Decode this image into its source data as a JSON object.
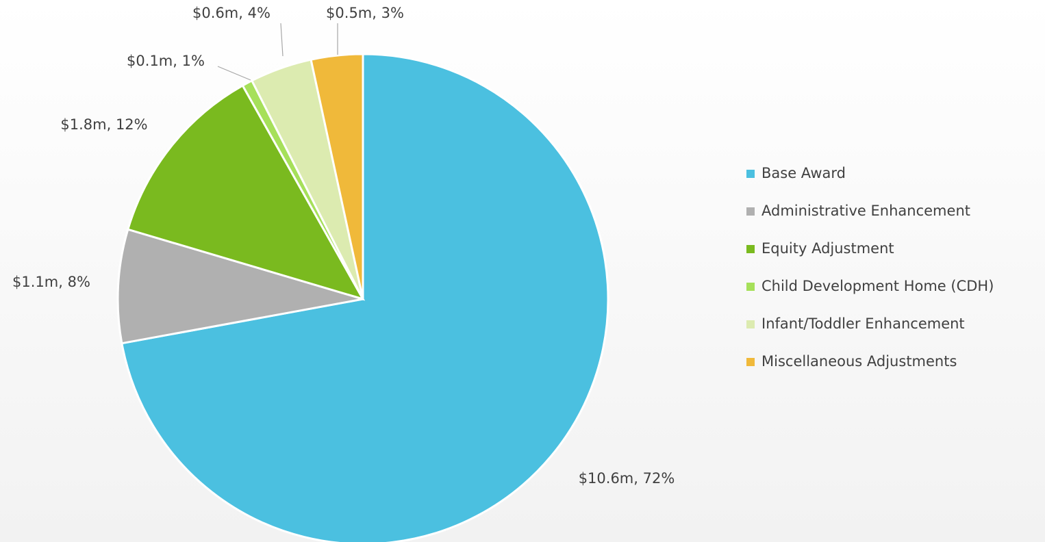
{
  "chart_data": {
    "type": "pie",
    "categories": [
      "Base Award",
      "Administrative Enhancement",
      "Equity Adjustment",
      "Child Development Home (CDH)",
      "Infant/Toddler Enhancement",
      "Miscellaneous Adjustments"
    ],
    "values": [
      10.6,
      1.1,
      1.8,
      0.1,
      0.6,
      0.5
    ],
    "value_labels": [
      "$10.6m, 72%",
      "$1.1m, 8%",
      "$1.8m, 12%",
      "$0.1m, 1%",
      "$0.6m, 4%",
      "$0.5m, 3%"
    ],
    "colors": [
      "#4bc0e0",
      "#b0b0b0",
      "#7aba1f",
      "#a6e05a",
      "#dcebb0",
      "#f0b93a"
    ],
    "legend": "right"
  }
}
